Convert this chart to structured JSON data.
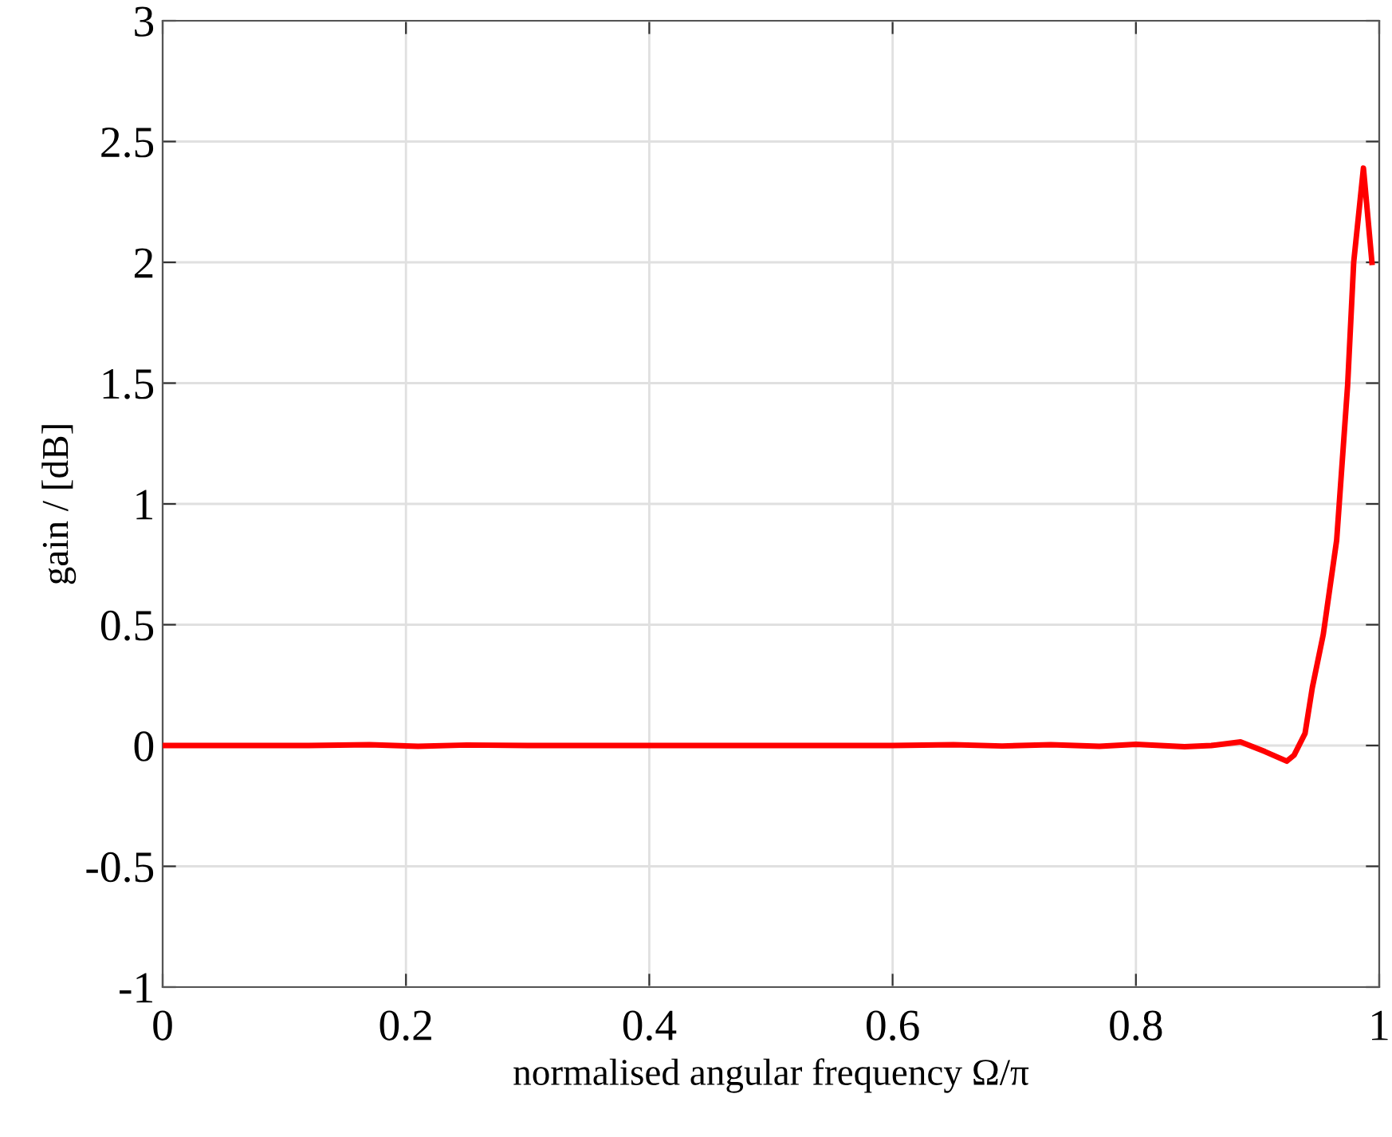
{
  "chart_data": {
    "type": "line",
    "xlabel": "normalised angular frequency Ω/π",
    "ylabel": "gain / [dB]",
    "series": [
      {
        "color": "#ff0000",
        "x": [
          0,
          0.06,
          0.12,
          0.17,
          0.21,
          0.25,
          0.3,
          0.4,
          0.5,
          0.6,
          0.65,
          0.69,
          0.73,
          0.77,
          0.8,
          0.84,
          0.862,
          0.886,
          0.906,
          0.924,
          0.93,
          0.939,
          0.945,
          0.954,
          0.965,
          0.974,
          0.979,
          0.987,
          0.994
        ],
        "values": [
          0,
          0,
          0,
          0.003,
          -0.003,
          0.002,
          0,
          0,
          0,
          0,
          0.003,
          -0.002,
          0.003,
          -0.003,
          0.005,
          -0.005,
          0,
          0.015,
          -0.025,
          -0.065,
          -0.04,
          0.05,
          0.24,
          0.46,
          0.85,
          1.49,
          2.0,
          2.39,
          2.0
        ]
      }
    ],
    "xlim": [
      0,
      1
    ],
    "ylim": [
      -1,
      3
    ],
    "xticks": [
      0,
      0.2,
      0.4,
      0.6,
      0.8,
      1
    ],
    "yticks": [
      -1,
      -0.5,
      0,
      0.5,
      1,
      1.5,
      2,
      2.5,
      3
    ],
    "grid": true
  }
}
